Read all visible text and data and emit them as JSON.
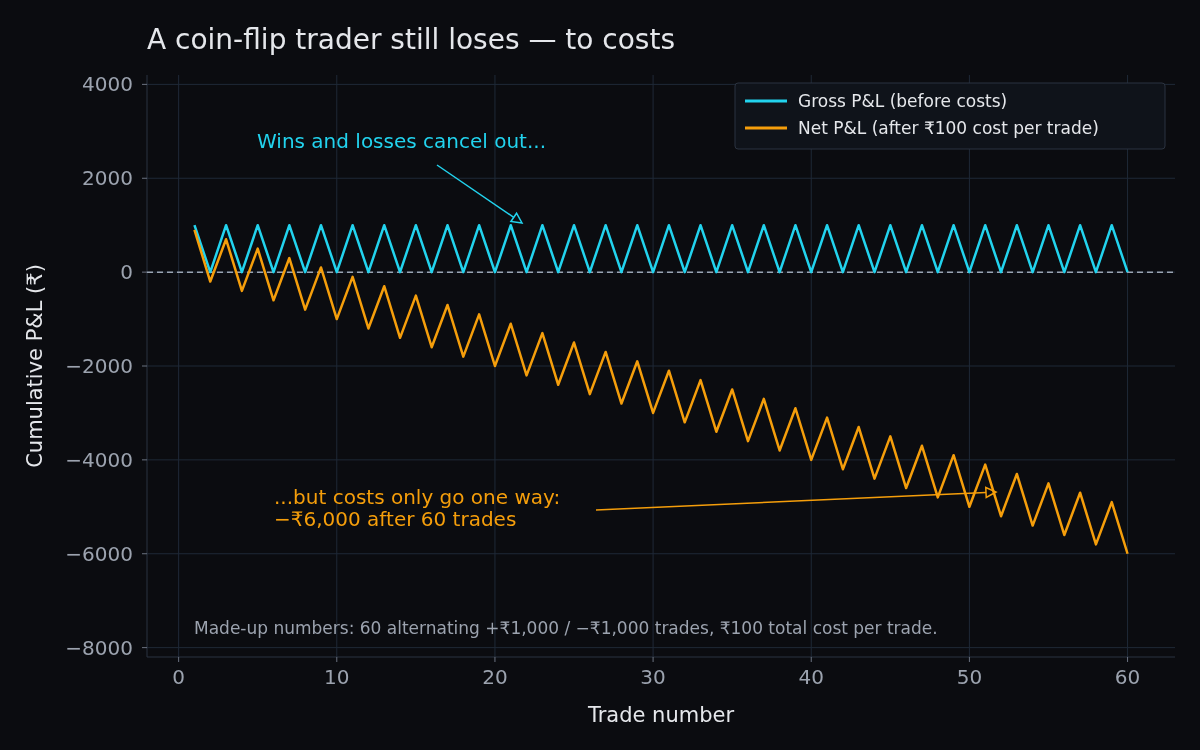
{
  "chart_data": {
    "type": "line",
    "title": "A coin-flip trader still loses — to costs",
    "xlabel": "Trade number",
    "ylabel": "Cumulative P&L (₹)",
    "x": [
      1,
      2,
      3,
      4,
      5,
      6,
      7,
      8,
      9,
      10,
      11,
      12,
      13,
      14,
      15,
      16,
      17,
      18,
      19,
      20,
      21,
      22,
      23,
      24,
      25,
      26,
      27,
      28,
      29,
      30,
      31,
      32,
      33,
      34,
      35,
      36,
      37,
      38,
      39,
      40,
      41,
      42,
      43,
      44,
      45,
      46,
      47,
      48,
      49,
      50,
      51,
      52,
      53,
      54,
      55,
      56,
      57,
      58,
      59,
      60
    ],
    "series": [
      {
        "name": "Gross P&L (before costs)",
        "color": "#22d3ee",
        "values": [
          1000,
          0,
          1000,
          0,
          1000,
          0,
          1000,
          0,
          1000,
          0,
          1000,
          0,
          1000,
          0,
          1000,
          0,
          1000,
          0,
          1000,
          0,
          1000,
          0,
          1000,
          0,
          1000,
          0,
          1000,
          0,
          1000,
          0,
          1000,
          0,
          1000,
          0,
          1000,
          0,
          1000,
          0,
          1000,
          0,
          1000,
          0,
          1000,
          0,
          1000,
          0,
          1000,
          0,
          1000,
          0,
          1000,
          0,
          1000,
          0,
          1000,
          0,
          1000,
          0,
          1000,
          0
        ]
      },
      {
        "name": "Net P&L (after ₹100 cost per trade)",
        "color": "#f59e0b",
        "values": [
          900,
          -200,
          700,
          -400,
          500,
          -600,
          300,
          -800,
          100,
          -1000,
          -100,
          -1200,
          -300,
          -1400,
          -500,
          -1600,
          -700,
          -1800,
          -900,
          -2000,
          -1100,
          -2200,
          -1300,
          -2400,
          -1500,
          -2600,
          -1700,
          -2800,
          -1900,
          -3000,
          -2100,
          -3200,
          -2300,
          -3400,
          -2500,
          -3600,
          -2700,
          -3800,
          -2900,
          -4000,
          -3100,
          -4200,
          -3300,
          -4400,
          -3500,
          -4600,
          -3700,
          -4800,
          -3900,
          -5000,
          -4100,
          -5200,
          -4300,
          -5400,
          -4500,
          -5600,
          -4700,
          -5800,
          -4900,
          -6000
        ]
      }
    ],
    "xlim": [
      -2,
      63
    ],
    "ylim": [
      -8200,
      4200
    ],
    "xticks": [
      0,
      10,
      20,
      30,
      40,
      50,
      60
    ],
    "yticks": [
      -8000,
      -6000,
      -4000,
      -2000,
      0,
      2000,
      4000
    ],
    "ref_lines": [
      {
        "axis": "y",
        "value": 0,
        "color": "#9aa4b2",
        "line_style": "dashed"
      }
    ],
    "annotations": [
      "Wins and losses cancel out...",
      "...but costs only go one way:\n−₹6,000 after 60 trades",
      "Made-up numbers: 60 alternating +₹1,000 / −₹1,000 trades, ₹100 total cost per trade."
    ],
    "grid": true,
    "legend": "top right",
    "marker": "none",
    "line_style": "solid"
  }
}
